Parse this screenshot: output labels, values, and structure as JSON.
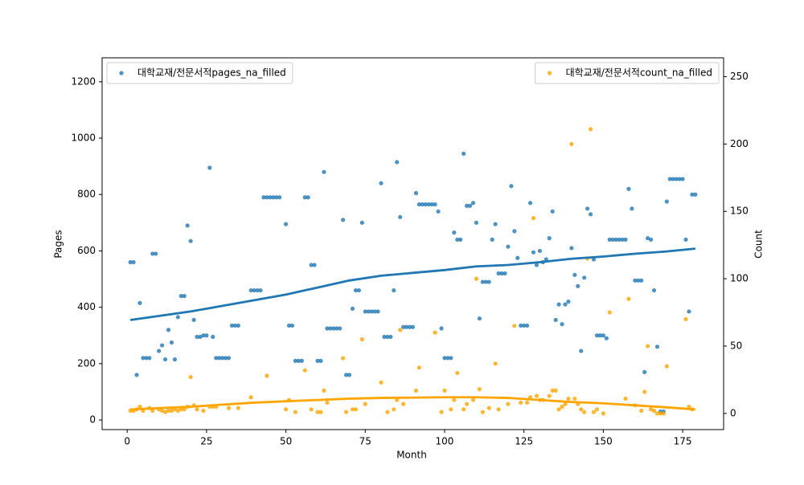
{
  "chart_data": {
    "type": "scatter",
    "xlabel": "Month",
    "ylabel": "Pages",
    "y2label": "Count",
    "xlim": [
      -7.9,
      187.9
    ],
    "ylim": [
      -34,
      1285
    ],
    "y2lim": [
      -12,
      264
    ],
    "xticks": [
      0,
      25,
      50,
      75,
      100,
      125,
      150,
      175
    ],
    "yticks": [
      0,
      200,
      400,
      600,
      800,
      1000,
      1200
    ],
    "y2ticks": [
      0,
      50,
      100,
      150,
      200,
      250
    ],
    "series": [
      {
        "name": "대학교재/전문서적pages_na_filled",
        "color": "#1f77b4",
        "legend": "upper left",
        "x": [
          1,
          2,
          3,
          4,
          5,
          6,
          7,
          8,
          9,
          10,
          11,
          12,
          13,
          14,
          15,
          16,
          17,
          18,
          19,
          20,
          21,
          22,
          23,
          24,
          25,
          26,
          27,
          28,
          29,
          30,
          31,
          32,
          33,
          34,
          35,
          39,
          40,
          41,
          42,
          43,
          44,
          45,
          46,
          47,
          48,
          50,
          51,
          52,
          53,
          54,
          55,
          56,
          57,
          58,
          59,
          60,
          61,
          62,
          63,
          64,
          65,
          66,
          67,
          68,
          69,
          70,
          71,
          72,
          73,
          74,
          75,
          76,
          77,
          78,
          79,
          80,
          81,
          82,
          83,
          84,
          85,
          86,
          87,
          88,
          89,
          90,
          91,
          92,
          93,
          94,
          95,
          96,
          97,
          98,
          99,
          100,
          101,
          102,
          103,
          104,
          105,
          106,
          107,
          108,
          109,
          110,
          111,
          112,
          113,
          114,
          115,
          116,
          117,
          118,
          119,
          120,
          121,
          122,
          123,
          124,
          125,
          126,
          127,
          128,
          129,
          130,
          131,
          132,
          133,
          134,
          135,
          136,
          137,
          138,
          139,
          140,
          141,
          142,
          143,
          144,
          145,
          146,
          147,
          148,
          149,
          150,
          151,
          152,
          153,
          154,
          155,
          156,
          157,
          158,
          159,
          160,
          161,
          162,
          163,
          164,
          165,
          166,
          167,
          168,
          169,
          170,
          171,
          172,
          173,
          174,
          175,
          176,
          177,
          178,
          179
        ],
        "values": [
          560,
          560,
          160,
          415,
          220,
          220,
          220,
          590,
          590,
          245,
          265,
          215,
          320,
          275,
          215,
          365,
          440,
          440,
          690,
          635,
          355,
          295,
          295,
          300,
          300,
          895,
          295,
          220,
          220,
          220,
          220,
          220,
          335,
          335,
          335,
          460,
          460,
          460,
          460,
          790,
          790,
          790,
          790,
          790,
          790,
          695,
          335,
          335,
          210,
          210,
          210,
          790,
          790,
          550,
          550,
          210,
          210,
          880,
          325,
          325,
          325,
          325,
          325,
          710,
          160,
          160,
          395,
          460,
          460,
          700,
          385,
          385,
          385,
          385,
          385,
          840,
          295,
          295,
          295,
          460,
          915,
          720,
          330,
          330,
          330,
          330,
          805,
          765,
          765,
          765,
          765,
          765,
          765,
          740,
          325,
          220,
          220,
          220,
          665,
          640,
          640,
          945,
          760,
          760,
          770,
          700,
          360,
          490,
          490,
          490,
          640,
          695,
          520,
          520,
          520,
          615,
          830,
          670,
          575,
          335,
          335,
          335,
          770,
          595,
          550,
          600,
          560,
          570,
          645,
          740,
          355,
          410,
          340,
          410,
          420,
          610,
          515,
          475,
          245,
          505,
          750,
          730,
          570,
          300,
          300,
          300,
          290,
          640,
          640,
          640,
          640,
          640,
          640,
          820,
          750,
          495,
          495,
          495,
          170,
          645,
          640,
          460,
          260,
          30,
          30,
          775,
          855,
          855,
          855,
          855,
          855,
          640,
          385,
          800,
          800
        ]
      },
      {
        "name": "대학교재/전문서적count_na_filled",
        "color": "#ffa500",
        "legend": "upper right",
        "axis": "y2",
        "x": [
          1,
          2,
          3,
          4,
          5,
          7,
          8,
          10,
          11,
          12,
          13,
          14,
          15,
          16,
          17,
          18,
          19,
          20,
          21,
          22,
          24,
          26,
          27,
          28,
          32,
          35,
          39,
          44,
          50,
          51,
          53,
          56,
          58,
          60,
          61,
          62,
          63,
          68,
          69,
          71,
          72,
          74,
          75,
          80,
          82,
          84,
          85,
          86,
          87,
          91,
          92,
          97,
          99,
          100,
          102,
          103,
          104,
          106,
          107,
          109,
          110,
          111,
          112,
          114,
          116,
          117,
          120,
          122,
          124,
          126,
          127,
          128,
          129,
          130,
          131,
          133,
          134,
          135,
          136,
          137,
          138,
          139,
          140,
          141,
          142,
          143,
          144,
          145,
          146,
          147,
          148,
          150,
          152,
          157,
          158,
          160,
          162,
          163,
          164,
          165,
          166,
          167,
          168,
          169,
          170,
          176,
          177,
          178
        ],
        "values": [
          2,
          2,
          3,
          5,
          2,
          4,
          2,
          3,
          2,
          1,
          2,
          2,
          3,
          2,
          3,
          3,
          5,
          27,
          6,
          3,
          2,
          5,
          5,
          5,
          4,
          4,
          12,
          28,
          3,
          10,
          1,
          32,
          3,
          1,
          1,
          17,
          8,
          41,
          1,
          3,
          3,
          55,
          7,
          23,
          1,
          3,
          10,
          62,
          7,
          17,
          34,
          60,
          1,
          17,
          3,
          10,
          30,
          3,
          7,
          10,
          100,
          18,
          1,
          4,
          37,
          3,
          7,
          65,
          8,
          8,
          12,
          145,
          13,
          10,
          10,
          13,
          17,
          17,
          3,
          5,
          7,
          11,
          200,
          11,
          7,
          3,
          1,
          115,
          211,
          1,
          3,
          0,
          75,
          11,
          85,
          6,
          2,
          16,
          50,
          3,
          2,
          0,
          0,
          0,
          35,
          70,
          5,
          3
        ]
      }
    ],
    "trends": [
      {
        "color": "#1f77b4",
        "x": [
          1,
          20,
          40,
          50,
          60,
          70,
          80,
          90,
          100,
          110,
          120,
          130,
          140,
          150,
          160,
          170,
          179
        ],
        "values": [
          355,
          385,
          425,
          445,
          470,
          495,
          512,
          522,
          532,
          545,
          550,
          560,
          572,
          580,
          590,
          598,
          608
        ]
      },
      {
        "color": "#ffa500",
        "axis": "y2",
        "x": [
          1,
          20,
          40,
          60,
          70,
          80,
          100,
          110,
          120,
          130,
          140,
          150,
          160,
          170,
          179
        ],
        "values": [
          3,
          5,
          8,
          10,
          11,
          11.5,
          12,
          12,
          11.5,
          10,
          8.5,
          7.5,
          6,
          4.5,
          3
        ]
      }
    ]
  }
}
